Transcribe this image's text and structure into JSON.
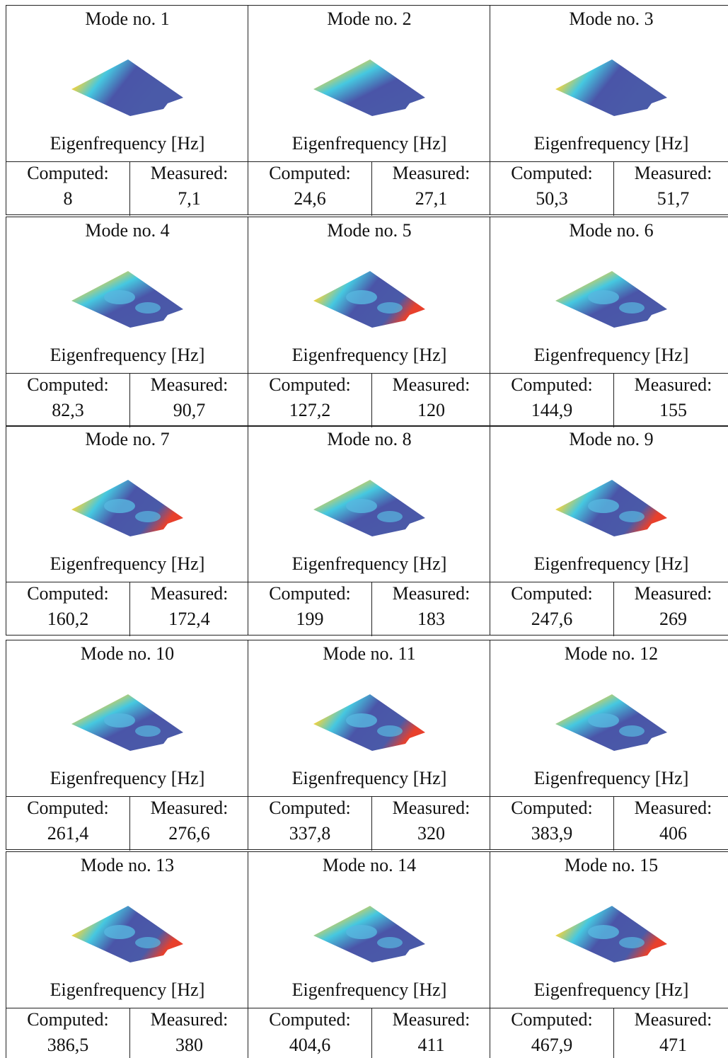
{
  "labels": {
    "frequency": "Eigenfrequency [Hz]",
    "computed": "Computed:",
    "measured": "Measured:"
  },
  "modes": [
    {
      "title": "Mode no. 1",
      "computed": "8",
      "measured": "7,1"
    },
    {
      "title": "Mode no. 2",
      "computed": "24,6",
      "measured": "27,1"
    },
    {
      "title": "Mode no. 3",
      "computed": "50,3",
      "measured": "51,7"
    },
    {
      "title": "Mode no. 4",
      "computed": "82,3",
      "measured": "90,7"
    },
    {
      "title": "Mode no. 5",
      "computed": "127,2",
      "measured": "120"
    },
    {
      "title": "Mode no. 6",
      "computed": "144,9",
      "measured": "155"
    },
    {
      "title": "Mode no. 7",
      "computed": "160,2",
      "measured": "172,4"
    },
    {
      "title": "Mode no. 8",
      "computed": "199",
      "measured": "183"
    },
    {
      "title": "Mode no. 9",
      "computed": "247,6",
      "measured": "269"
    },
    {
      "title": "Mode no. 10",
      "computed": "261,4",
      "measured": "276,6"
    },
    {
      "title": "Mode no. 11",
      "computed": "337,8",
      "measured": "320"
    },
    {
      "title": "Mode no. 12",
      "computed": "383,9",
      "measured": "406"
    },
    {
      "title": "Mode no. 13",
      "computed": "386,5",
      "measured": "380"
    },
    {
      "title": "Mode no. 14",
      "computed": "404,6",
      "measured": "411"
    },
    {
      "title": "Mode no. 15",
      "computed": "467,9",
      "measured": "471"
    }
  ]
}
